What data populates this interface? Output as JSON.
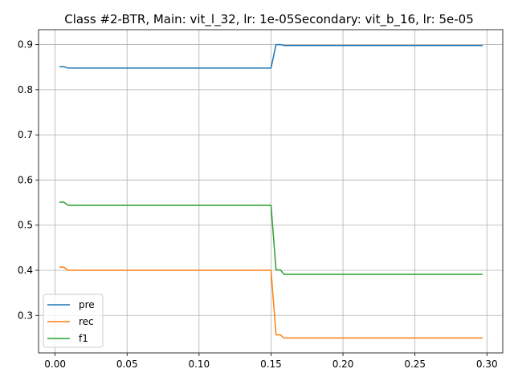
{
  "chart_data": {
    "type": "line",
    "title": "Class #2-BTR, Main: vit_l_32, lr: 1e-05Secondary: vit_b_16, lr: 5e-05",
    "xlabel": "",
    "ylabel": "",
    "xlim": [
      -0.0115,
      0.311
    ],
    "ylim": [
      0.217,
      0.933
    ],
    "xticks": [
      0.0,
      0.05,
      0.1,
      0.15,
      0.2,
      0.25,
      0.3
    ],
    "xtick_labels": [
      "0.00",
      "0.05",
      "0.10",
      "0.15",
      "0.20",
      "0.25",
      "0.30"
    ],
    "yticks": [
      0.3,
      0.4,
      0.5,
      0.6,
      0.7,
      0.8,
      0.9
    ],
    "ytick_labels": [
      "0.3",
      "0.4",
      "0.5",
      "0.6",
      "0.7",
      "0.8",
      "0.9"
    ],
    "grid": true,
    "legend_position": "lower-left",
    "series": [
      {
        "name": "pre",
        "color": "#1f77b4",
        "points": [
          [
            0.003,
            0.851
          ],
          [
            0.006,
            0.851
          ],
          [
            0.009,
            0.848
          ],
          [
            0.15,
            0.848
          ],
          [
            0.1535,
            0.9
          ],
          [
            0.1565,
            0.9
          ],
          [
            0.159,
            0.898
          ],
          [
            0.297,
            0.898
          ]
        ]
      },
      {
        "name": "rec",
        "color": "#ff7f0e",
        "points": [
          [
            0.003,
            0.407
          ],
          [
            0.006,
            0.407
          ],
          [
            0.009,
            0.4
          ],
          [
            0.15,
            0.4
          ],
          [
            0.1535,
            0.257
          ],
          [
            0.1565,
            0.257
          ],
          [
            0.159,
            0.25
          ],
          [
            0.297,
            0.25
          ]
        ]
      },
      {
        "name": "f1",
        "color": "#2ca02c",
        "points": [
          [
            0.003,
            0.551
          ],
          [
            0.006,
            0.551
          ],
          [
            0.009,
            0.544
          ],
          [
            0.15,
            0.544
          ],
          [
            0.1535,
            0.401
          ],
          [
            0.1565,
            0.401
          ],
          [
            0.159,
            0.391
          ],
          [
            0.297,
            0.391
          ]
        ]
      }
    ]
  }
}
